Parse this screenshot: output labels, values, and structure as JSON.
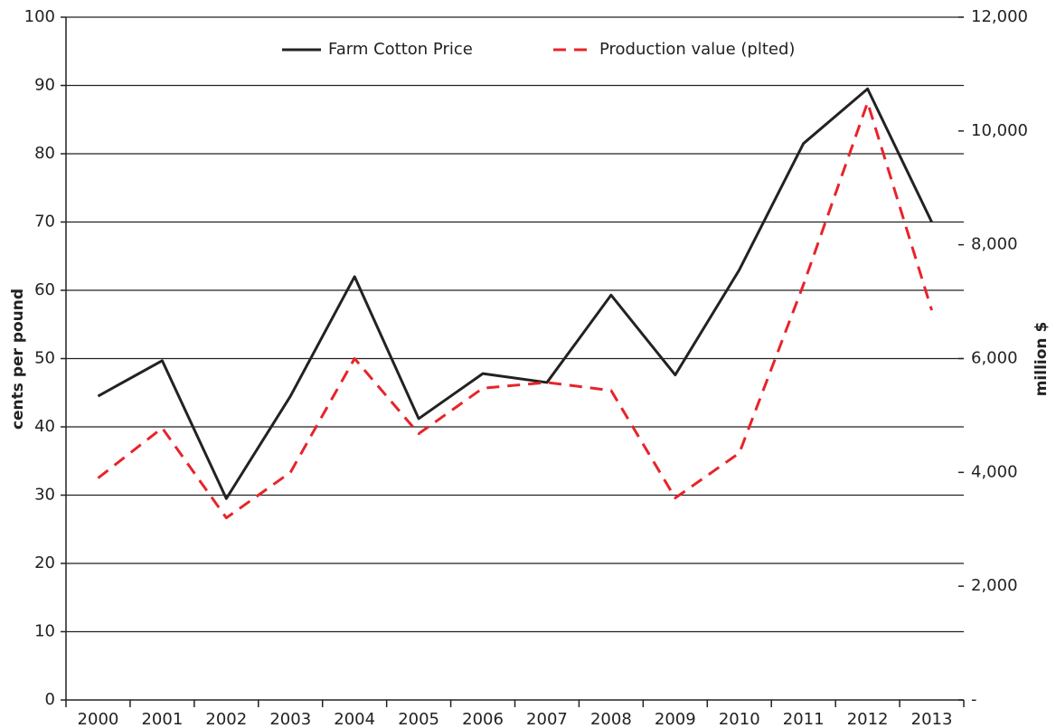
{
  "chart_data": {
    "type": "line",
    "categories": [
      "2000",
      "2001",
      "2002",
      "2003",
      "2004",
      "2005",
      "2006",
      "2007",
      "2008",
      "2009",
      "2010",
      "2011",
      "2012",
      "2013"
    ],
    "series": [
      {
        "name": "Farm Cotton Price",
        "color": "#222222",
        "dash": false,
        "values": [
          44.5,
          49.7,
          29.5,
          44.5,
          62,
          41.2,
          47.8,
          46.5,
          59.3,
          47.6,
          63,
          81.5,
          89.5,
          70
        ]
      },
      {
        "name": "Production value (plted)",
        "color": "#e8232a",
        "dash": true,
        "axis": "y2",
        "values": [
          3900,
          4780,
          3200,
          4000,
          6000,
          4680,
          5480,
          5580,
          5440,
          3550,
          4340,
          7300,
          10500,
          6850
        ]
      }
    ],
    "ylabel": "cents per pound",
    "y2label": "million $",
    "ylim": [
      0,
      100
    ],
    "yticks": [
      0,
      10,
      20,
      30,
      40,
      50,
      60,
      70,
      80,
      90,
      100
    ],
    "y2lim": [
      0,
      12000
    ],
    "y2ticks": [
      {
        "value": 0,
        "label": "-"
      },
      {
        "value": 2000,
        "label": "2,000"
      },
      {
        "value": 4000,
        "label": "4,000"
      },
      {
        "value": 6000,
        "label": "6,000"
      },
      {
        "value": 8000,
        "label": "8,000"
      },
      {
        "value": 10000,
        "label": "10,000"
      },
      {
        "value": 12000,
        "label": "12,000"
      }
    ],
    "grid": true,
    "legend": "top"
  }
}
